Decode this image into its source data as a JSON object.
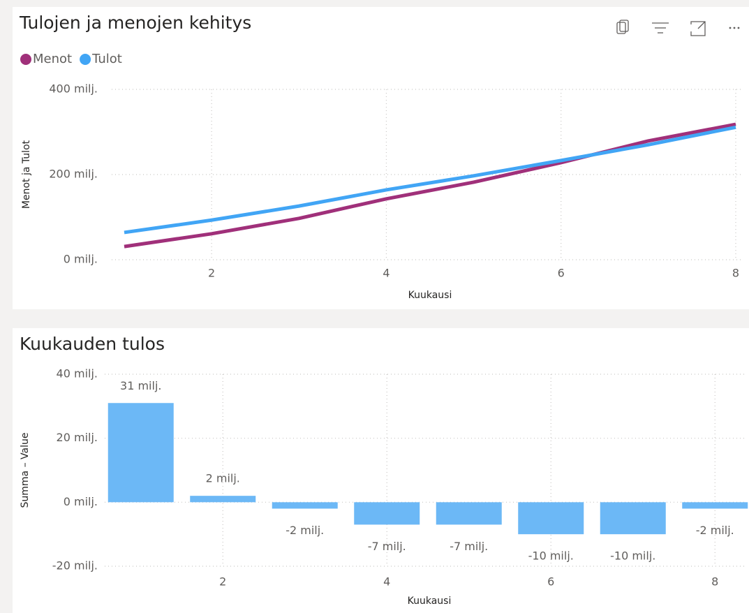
{
  "chart_data": [
    {
      "type": "line",
      "title": "Tulojen ja menojen kehitys",
      "y_label": "Menot ja Tulot",
      "x_label": "Kuukausi",
      "x": [
        1,
        2,
        3,
        4,
        5,
        6,
        7,
        8
      ],
      "xlim": [
        1,
        8
      ],
      "xticks": [
        2,
        4,
        6,
        8
      ],
      "ylim": [
        0,
        400
      ],
      "yticks": [
        {
          "value": 0,
          "label": "0 milj."
        },
        {
          "value": 200,
          "label": "200 milj."
        },
        {
          "value": 400,
          "label": "400 milj."
        }
      ],
      "grid": true,
      "legend": "top-left",
      "series": [
        {
          "name": "Menot",
          "color": "#a0307a",
          "values": [
            31,
            61,
            97,
            143,
            182,
            228,
            279,
            318
          ]
        },
        {
          "name": "Tulot",
          "color": "#41a5f5",
          "values": [
            64,
            93,
            126,
            164,
            197,
            233,
            270,
            311
          ]
        }
      ]
    },
    {
      "type": "bar",
      "title": "Kuukauden tulos",
      "y_label": "Summa – Value",
      "x_label": "Kuukausi",
      "x": [
        1,
        2,
        3,
        4,
        5,
        6,
        7,
        8
      ],
      "xlim": [
        0.5,
        8.5
      ],
      "xticks": [
        2,
        4,
        6,
        8
      ],
      "ylim": [
        -20,
        40
      ],
      "yticks": [
        {
          "value": -20,
          "label": "-20 milj."
        },
        {
          "value": 0,
          "label": "0 milj."
        },
        {
          "value": 20,
          "label": "20 milj."
        },
        {
          "value": 40,
          "label": "40 milj."
        }
      ],
      "grid": true,
      "color": "#6cb8f6",
      "values": [
        31,
        2,
        -2,
        -7,
        -7,
        -10,
        -10,
        -2
      ],
      "value_labels": [
        "31 milj.",
        "2 milj.",
        "-2 milj.",
        "-7 milj.",
        "-7 milj.",
        "-10 milj.",
        "-10 milj.",
        "-2 milj."
      ]
    }
  ]
}
